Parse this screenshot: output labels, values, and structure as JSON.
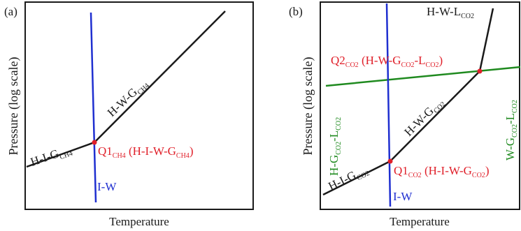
{
  "colors": {
    "black": "#1a1a1a",
    "blue": "#1f2fd0",
    "red": "#e0202a",
    "green": "#1f8a1f"
  },
  "panel_a": {
    "tag": "(a)",
    "ylabel": "Pressure (log scale)",
    "xlabel": "Temperature",
    "hig": {
      "base": "H-I-G",
      "sub": "CH4"
    },
    "hwg": {
      "base": "H-W-G",
      "sub": "CH4"
    },
    "iw": "I-W",
    "q1": {
      "p1": "Q1",
      "s1": "CH4",
      "p2": " (H-I-W-G",
      "s2": "CH4",
      "p3": ")"
    }
  },
  "panel_b": {
    "tag": "(b)",
    "ylabel": "Pressure (log scale)",
    "xlabel": "Temperature",
    "hwl": {
      "base": "H-W-L",
      "sub": "CO2"
    },
    "q2": {
      "p1": "Q2",
      "s1": "CO2",
      "p2": " (H-W-G",
      "s2": "CO2",
      "p3": "-L",
      "s3": "CO2",
      "p4": ")"
    },
    "hgl": {
      "p1": "H-G",
      "s1": "CO2",
      "p2": "-L",
      "s2": "CO2"
    },
    "hwg": {
      "base": "H-W-G",
      "sub": "CO2"
    },
    "wgl": {
      "p1": "W-G",
      "s1": "CO2",
      "p2": "-L",
      "s2": "CO2"
    },
    "hig": {
      "base": "H-I-G",
      "sub": "CO2"
    },
    "q1": {
      "p1": "Q1",
      "s1": "CO2",
      "p2": " (H-I-W-G",
      "s2": "CO2",
      "p3": ")"
    },
    "iw": "I-W"
  }
}
